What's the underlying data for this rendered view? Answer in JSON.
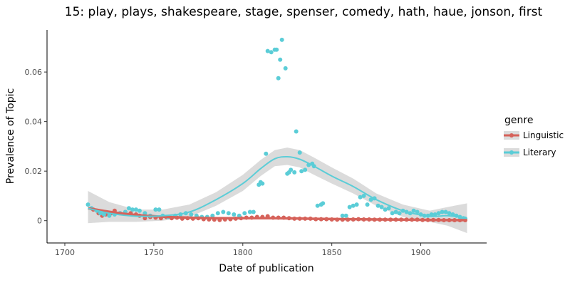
{
  "chart_data": {
    "type": "scatter",
    "title": "15: play, plays, shakespeare, stage, spenser, comedy, hath, haue, jonson, first",
    "xlabel": "Date of publication",
    "ylabel": "Prevalence of Topic",
    "xlim": [
      1690,
      1937
    ],
    "ylim": [
      -0.009,
      0.077
    ],
    "x_ticks": [
      1700,
      1750,
      1800,
      1850,
      1900
    ],
    "x_tick_labels": [
      "1700",
      "1750",
      "1800",
      "1850",
      "1900"
    ],
    "y_ticks": [
      0,
      0.02,
      0.04,
      0.06
    ],
    "y_tick_labels": [
      "0",
      "0.02",
      "0.04",
      "0.06"
    ],
    "grid": false,
    "legend": {
      "title": "genre",
      "position": "right"
    },
    "series": [
      {
        "name": "Linguistic",
        "color": "#d6625a",
        "points": [
          [
            1716,
            0.0045
          ],
          [
            1719,
            0.003
          ],
          [
            1721,
            0.002
          ],
          [
            1723,
            0.0025
          ],
          [
            1726,
            0.003
          ],
          [
            1728,
            0.004
          ],
          [
            1731,
            0.003
          ],
          [
            1734,
            0.0035
          ],
          [
            1737,
            0.003
          ],
          [
            1740,
            0.0025
          ],
          [
            1742,
            0.002
          ],
          [
            1745,
            0.001
          ],
          [
            1748,
            0.0015
          ],
          [
            1751,
            0.0012
          ],
          [
            1754,
            0.001
          ],
          [
            1757,
            0.0015
          ],
          [
            1760,
            0.001
          ],
          [
            1763,
            0.0012
          ],
          [
            1766,
            0.0008
          ],
          [
            1769,
            0.001
          ],
          [
            1772,
            0.0008
          ],
          [
            1775,
            0.001
          ],
          [
            1778,
            0.0006
          ],
          [
            1781,
            0.0005
          ],
          [
            1784,
            0.0004
          ],
          [
            1787,
            0.0003
          ],
          [
            1790,
            0.0005
          ],
          [
            1793,
            0.0006
          ],
          [
            1796,
            0.0008
          ],
          [
            1799,
            0.001
          ],
          [
            1802,
            0.0012
          ],
          [
            1805,
            0.0012
          ],
          [
            1808,
            0.0015
          ],
          [
            1811,
            0.0015
          ],
          [
            1814,
            0.0018
          ],
          [
            1817,
            0.0012
          ],
          [
            1820,
            0.0012
          ],
          [
            1823,
            0.0012
          ],
          [
            1826,
            0.001
          ],
          [
            1829,
            0.0008
          ],
          [
            1832,
            0.0008
          ],
          [
            1835,
            0.0008
          ],
          [
            1838,
            0.0008
          ],
          [
            1841,
            0.0006
          ],
          [
            1844,
            0.0006
          ],
          [
            1847,
            0.0006
          ],
          [
            1850,
            0.0005
          ],
          [
            1853,
            0.0004
          ],
          [
            1856,
            0.0004
          ],
          [
            1859,
            0.0004
          ],
          [
            1862,
            0.0005
          ],
          [
            1865,
            0.0006
          ],
          [
            1868,
            0.0005
          ],
          [
            1871,
            0.0005
          ],
          [
            1874,
            0.0004
          ],
          [
            1877,
            0.0004
          ],
          [
            1880,
            0.0004
          ],
          [
            1883,
            0.0004
          ],
          [
            1886,
            0.0004
          ],
          [
            1889,
            0.0004
          ],
          [
            1892,
            0.0004
          ],
          [
            1895,
            0.0004
          ],
          [
            1898,
            0.0004
          ],
          [
            1901,
            0.0003
          ],
          [
            1904,
            0.0003
          ],
          [
            1907,
            0.0003
          ],
          [
            1910,
            0.0003
          ],
          [
            1913,
            0.0002
          ],
          [
            1916,
            0.0002
          ],
          [
            1919,
            0.0002
          ],
          [
            1922,
            0.0002
          ],
          [
            1925,
            0.0002
          ]
        ],
        "trend": [
          [
            1713,
            0.005
          ],
          [
            1725,
            0.0036
          ],
          [
            1740,
            0.0023
          ],
          [
            1755,
            0.0016
          ],
          [
            1770,
            0.0012
          ],
          [
            1785,
            0.001
          ],
          [
            1800,
            0.001
          ],
          [
            1815,
            0.001
          ],
          [
            1830,
            0.0009
          ],
          [
            1845,
            0.0007
          ],
          [
            1860,
            0.0006
          ],
          [
            1875,
            0.0005
          ],
          [
            1890,
            0.0004
          ],
          [
            1905,
            0.0003
          ],
          [
            1926,
            0.0002
          ]
        ]
      },
      {
        "name": "Literary",
        "color": "#5bcdd7",
        "points": [
          [
            1713,
            0.0065
          ],
          [
            1715,
            0.005
          ],
          [
            1718,
            0.004
          ],
          [
            1720,
            0.003
          ],
          [
            1722,
            0.0025
          ],
          [
            1725,
            0.002
          ],
          [
            1728,
            0.0025
          ],
          [
            1731,
            0.003
          ],
          [
            1734,
            0.0035
          ],
          [
            1736,
            0.005
          ],
          [
            1738,
            0.0045
          ],
          [
            1740,
            0.0045
          ],
          [
            1742,
            0.004
          ],
          [
            1745,
            0.003
          ],
          [
            1748,
            0.002
          ],
          [
            1751,
            0.0045
          ],
          [
            1753,
            0.0045
          ],
          [
            1755,
            0.002
          ],
          [
            1758,
            0.0015
          ],
          [
            1762,
            0.002
          ],
          [
            1765,
            0.0025
          ],
          [
            1768,
            0.003
          ],
          [
            1771,
            0.0025
          ],
          [
            1774,
            0.002
          ],
          [
            1777,
            0.0015
          ],
          [
            1780,
            0.0015
          ],
          [
            1783,
            0.002
          ],
          [
            1786,
            0.003
          ],
          [
            1789,
            0.0035
          ],
          [
            1792,
            0.003
          ],
          [
            1795,
            0.0025
          ],
          [
            1798,
            0.002
          ],
          [
            1801,
            0.003
          ],
          [
            1804,
            0.0035
          ],
          [
            1806,
            0.0035
          ],
          [
            1809,
            0.0145
          ],
          [
            1810,
            0.0155
          ],
          [
            1811,
            0.015
          ],
          [
            1813,
            0.027
          ],
          [
            1814,
            0.0685
          ],
          [
            1816,
            0.068
          ],
          [
            1818,
            0.069
          ],
          [
            1819,
            0.069
          ],
          [
            1820,
            0.0575
          ],
          [
            1821,
            0.065
          ],
          [
            1822,
            0.073
          ],
          [
            1824,
            0.0615
          ],
          [
            1825,
            0.019
          ],
          [
            1826,
            0.0195
          ],
          [
            1827,
            0.0205
          ],
          [
            1829,
            0.0195
          ],
          [
            1830,
            0.036
          ],
          [
            1832,
            0.0275
          ],
          [
            1833,
            0.02
          ],
          [
            1835,
            0.0205
          ],
          [
            1837,
            0.0225
          ],
          [
            1839,
            0.023
          ],
          [
            1840,
            0.022
          ],
          [
            1842,
            0.006
          ],
          [
            1844,
            0.0065
          ],
          [
            1845,
            0.007
          ],
          [
            1856,
            0.002
          ],
          [
            1858,
            0.002
          ],
          [
            1860,
            0.0055
          ],
          [
            1862,
            0.006
          ],
          [
            1864,
            0.0065
          ],
          [
            1866,
            0.0095
          ],
          [
            1868,
            0.01
          ],
          [
            1870,
            0.0065
          ],
          [
            1872,
            0.0085
          ],
          [
            1874,
            0.009
          ],
          [
            1876,
            0.006
          ],
          [
            1878,
            0.0055
          ],
          [
            1880,
            0.0045
          ],
          [
            1882,
            0.005
          ],
          [
            1884,
            0.003
          ],
          [
            1886,
            0.0035
          ],
          [
            1888,
            0.003
          ],
          [
            1890,
            0.004
          ],
          [
            1892,
            0.0035
          ],
          [
            1894,
            0.003
          ],
          [
            1896,
            0.004
          ],
          [
            1898,
            0.0035
          ],
          [
            1900,
            0.0025
          ],
          [
            1902,
            0.002
          ],
          [
            1904,
            0.002
          ],
          [
            1906,
            0.0025
          ],
          [
            1908,
            0.0025
          ],
          [
            1910,
            0.003
          ],
          [
            1912,
            0.0035
          ],
          [
            1914,
            0.0035
          ],
          [
            1916,
            0.003
          ],
          [
            1918,
            0.0025
          ],
          [
            1920,
            0.002
          ],
          [
            1922,
            0.0015
          ],
          [
            1924,
            0.001
          ],
          [
            1925,
            0.0008
          ]
        ],
        "trend": [
          [
            1713,
            0.005
          ],
          [
            1725,
            0.003
          ],
          [
            1740,
            0.0018
          ],
          [
            1755,
            0.002
          ],
          [
            1770,
            0.0035
          ],
          [
            1785,
            0.0085
          ],
          [
            1800,
            0.015
          ],
          [
            1810,
            0.021
          ],
          [
            1818,
            0.025
          ],
          [
            1825,
            0.0258
          ],
          [
            1832,
            0.0248
          ],
          [
            1840,
            0.022
          ],
          [
            1850,
            0.018
          ],
          [
            1862,
            0.0138
          ],
          [
            1875,
            0.0085
          ],
          [
            1890,
            0.004
          ],
          [
            1905,
            0.0018
          ],
          [
            1915,
            0.002
          ],
          [
            1926,
            0.001
          ]
        ]
      }
    ],
    "confidence_band": [
      [
        1713,
        -0.001,
        0.012
      ],
      [
        1725,
        -0.0005,
        0.0075
      ],
      [
        1740,
        -0.0005,
        0.0045
      ],
      [
        1755,
        0.0,
        0.0045
      ],
      [
        1770,
        0.0015,
        0.0065
      ],
      [
        1785,
        0.006,
        0.0115
      ],
      [
        1800,
        0.012,
        0.0185
      ],
      [
        1810,
        0.018,
        0.0245
      ],
      [
        1818,
        0.022,
        0.0285
      ],
      [
        1825,
        0.0225,
        0.0295
      ],
      [
        1832,
        0.0215,
        0.0285
      ],
      [
        1840,
        0.0185,
        0.0255
      ],
      [
        1850,
        0.015,
        0.0215
      ],
      [
        1862,
        0.011,
        0.017
      ],
      [
        1875,
        0.006,
        0.011
      ],
      [
        1890,
        0.0015,
        0.0065
      ],
      [
        1905,
        -0.0005,
        0.004
      ],
      [
        1915,
        -0.002,
        0.0055
      ],
      [
        1926,
        -0.005,
        0.007
      ]
    ]
  }
}
